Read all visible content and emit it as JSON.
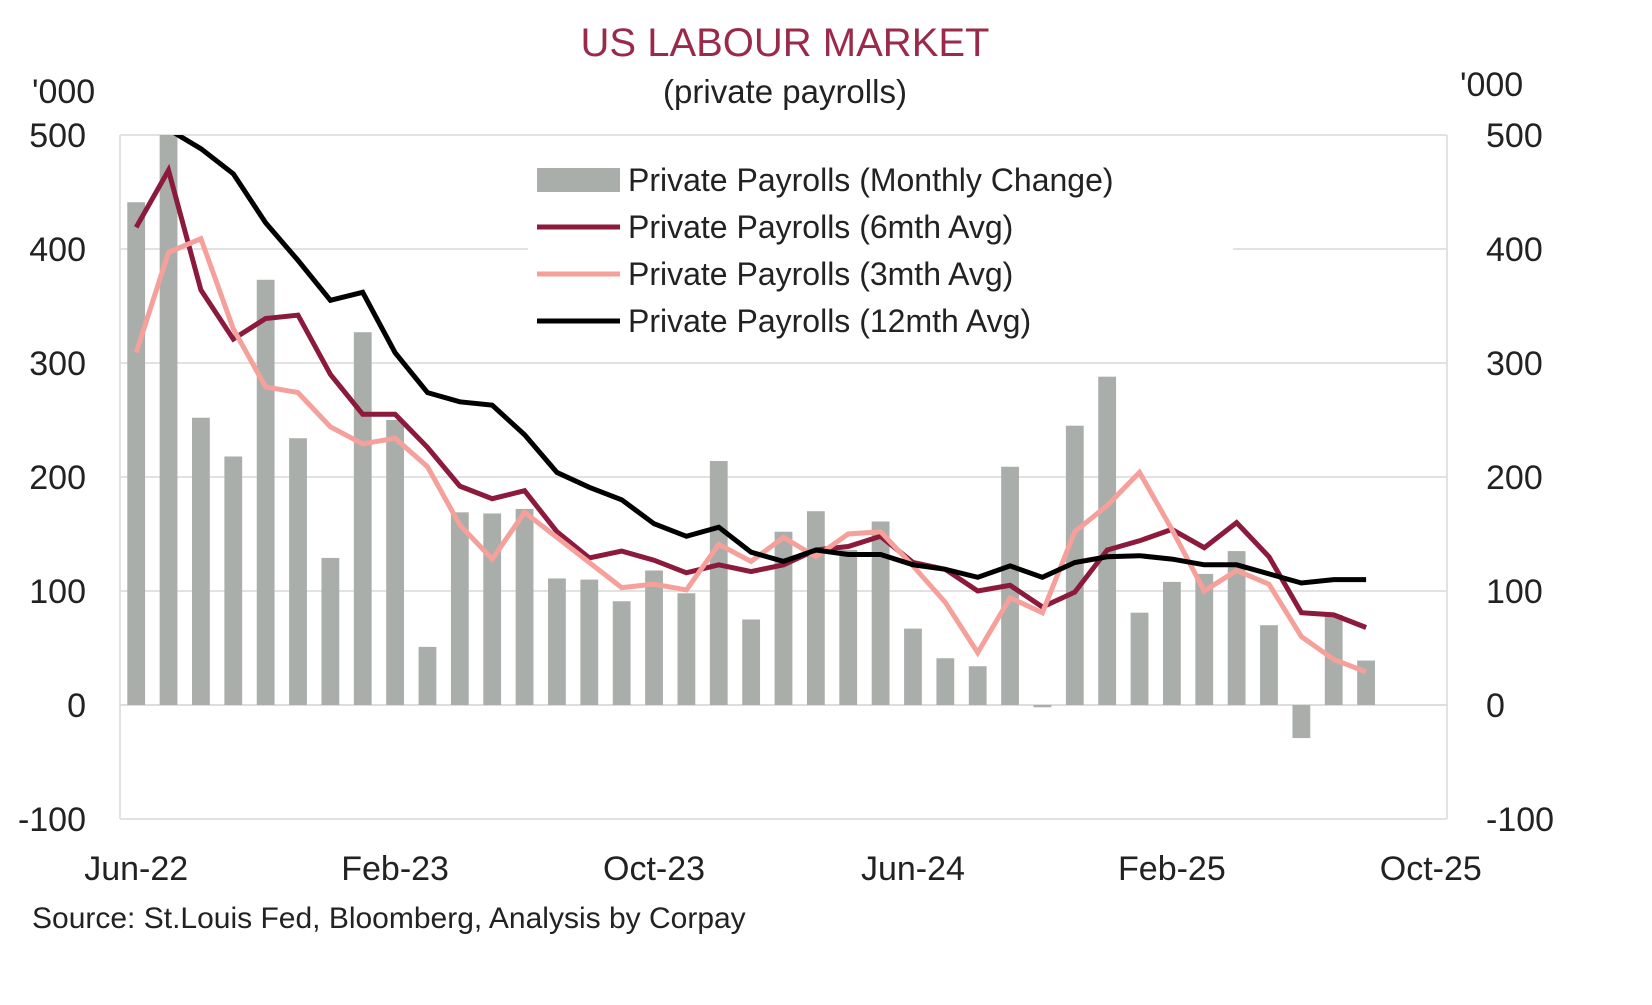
{
  "chart_data": {
    "type": "bar+line",
    "title": "US LABOUR MARKET",
    "subtitle": "(private payrolls)",
    "ylabel_left": "'000",
    "ylabel_right": "'000",
    "ylim": [
      -100,
      500
    ],
    "yticks": [
      500,
      400,
      300,
      200,
      100,
      0,
      -100
    ],
    "grid": true,
    "legend_position": "top-center",
    "x_axis_range": [
      "Jun-22",
      "Oct-25"
    ],
    "xtick_labels": [
      "Jun-22",
      "Feb-23",
      "Oct-23",
      "Jun-24",
      "Feb-25",
      "Oct-25"
    ],
    "categories": [
      "Jun-22",
      "Jul-22",
      "Aug-22",
      "Sep-22",
      "Oct-22",
      "Nov-22",
      "Dec-22",
      "Jan-23",
      "Feb-23",
      "Mar-23",
      "Apr-23",
      "May-23",
      "Jun-23",
      "Jul-23",
      "Aug-23",
      "Sep-23",
      "Oct-23",
      "Nov-23",
      "Dec-23",
      "Jan-24",
      "Feb-24",
      "Mar-24",
      "Apr-24",
      "May-24",
      "Jun-24",
      "Jul-24",
      "Aug-24",
      "Sep-24",
      "Oct-24",
      "Nov-24",
      "Dec-24",
      "Jan-25",
      "Feb-25",
      "Mar-25",
      "Apr-25",
      "May-25",
      "Jun-25",
      "Jul-25",
      "Aug-25"
    ],
    "series": [
      {
        "name": "Private Payrolls (Monthly Change)",
        "kind": "bar",
        "color": "#a9aeab",
        "values": [
          441,
          510,
          252,
          218,
          373,
          234,
          129,
          327,
          250,
          51,
          169,
          168,
          172,
          111,
          110,
          91,
          118,
          98,
          214,
          75,
          152,
          170,
          136,
          161,
          67,
          41,
          34,
          209,
          -2,
          245,
          288,
          81,
          108,
          115,
          135,
          70,
          -29,
          79,
          39
        ]
      },
      {
        "name": "Private Payrolls (6mth Avg)",
        "kind": "line",
        "color": "#8b1a3c",
        "values": [
          419,
          469,
          364,
          321,
          339,
          342,
          290,
          255,
          255,
          226,
          192,
          181,
          188,
          152,
          129,
          135,
          127,
          116,
          123,
          117,
          123,
          136,
          139,
          148,
          125,
          119,
          100,
          105,
          86,
          99,
          136,
          144,
          154,
          138,
          160,
          130,
          81,
          79,
          68
        ]
      },
      {
        "name": "Private Payrolls (3mth Avg)",
        "kind": "line",
        "color": "#f5a09a",
        "values": [
          309,
          397,
          409,
          330,
          279,
          274,
          244,
          229,
          234,
          209,
          158,
          128,
          169,
          147,
          125,
          103,
          106,
          101,
          141,
          126,
          147,
          130,
          150,
          152,
          122,
          90,
          46,
          94,
          81,
          152,
          175,
          204,
          154,
          100,
          118,
          106,
          60,
          40,
          29
        ]
      },
      {
        "name": "Private Payrolls (12mth Avg)",
        "kind": "line",
        "color": "#000000",
        "values": [
          null,
          505,
          488,
          466,
          423,
          390,
          355,
          362,
          309,
          274,
          266,
          263,
          237,
          204,
          191,
          180,
          159,
          148,
          156,
          134,
          126,
          136,
          132,
          132,
          123,
          119,
          112,
          122,
          112,
          125,
          130,
          131,
          128,
          123,
          123,
          115,
          107,
          110,
          110
        ]
      }
    ]
  },
  "source": "Source: St.Louis Fed, Bloomberg, Analysis by Corpay",
  "colors": {
    "title": "#9b2a4a",
    "grid": "#e2e2e2"
  }
}
